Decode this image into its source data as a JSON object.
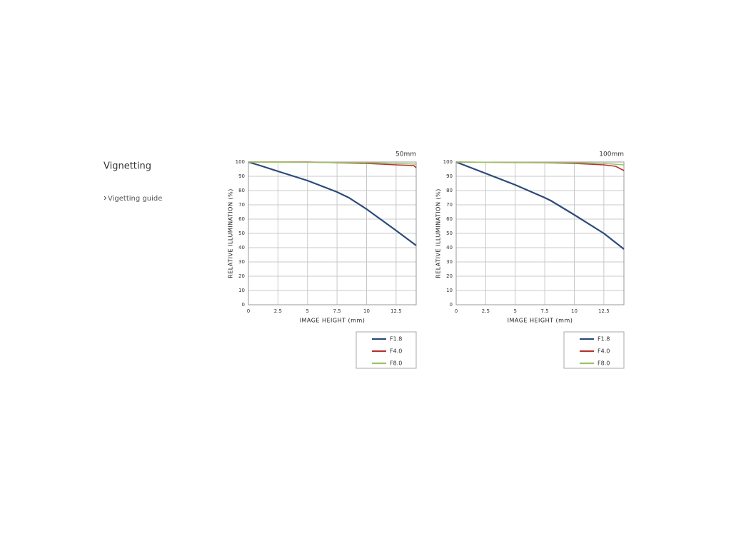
{
  "heading": "Vignetting",
  "link": "Vigetting guide",
  "chart_data": [
    {
      "type": "line",
      "title": "50mm",
      "x_label": "IMAGE HEIGHT (mm)",
      "y_label": "RELATIVE ILLUMINATION (%)",
      "xlim": [
        0,
        14.2
      ],
      "ylim": [
        0,
        100
      ],
      "xticks": [
        0,
        2.5,
        5,
        7.5,
        10,
        12.5
      ],
      "yticks": [
        0,
        10,
        20,
        30,
        40,
        50,
        60,
        70,
        80,
        90,
        100
      ],
      "grid": true,
      "legend": "below-right",
      "series": [
        {
          "name": "F1.8",
          "color": "#2c4a7c",
          "x": [
            0,
            1,
            2.5,
            5,
            7.5,
            8.5,
            10,
            12.5,
            14.2
          ],
          "values": [
            100,
            97.5,
            93.5,
            87,
            79,
            75,
            67,
            52,
            41.5
          ]
        },
        {
          "name": "F4.0",
          "color": "#b8322e",
          "x": [
            0,
            5,
            10,
            12.5,
            14,
            14.2
          ],
          "values": [
            100,
            100,
            99,
            98,
            97.5,
            96
          ]
        },
        {
          "name": "F8.0",
          "color": "#9cc26a",
          "x": [
            0,
            10,
            12.5,
            14.2
          ],
          "values": [
            100,
            99.5,
            99,
            98.5
          ]
        }
      ]
    },
    {
      "type": "line",
      "title": "100mm",
      "x_label": "IMAGE HEIGHT (mm)",
      "y_label": "RELATIVE ILLUMINATION (%)",
      "xlim": [
        0,
        14.2
      ],
      "ylim": [
        0,
        100
      ],
      "xticks": [
        0,
        2.5,
        5,
        7.5,
        10,
        12.5
      ],
      "yticks": [
        0,
        10,
        20,
        30,
        40,
        50,
        60,
        70,
        80,
        90,
        100
      ],
      "grid": true,
      "legend": "below-right",
      "series": [
        {
          "name": "F1.8",
          "color": "#2c4a7c",
          "x": [
            0,
            2.5,
            5,
            7.5,
            8,
            10,
            12.5,
            14.2
          ],
          "values": [
            100,
            92,
            84,
            75,
            73,
            63,
            50,
            39
          ]
        },
        {
          "name": "F4.0",
          "color": "#b8322e",
          "x": [
            0,
            7.5,
            10,
            12.5,
            13.5,
            14.2
          ],
          "values": [
            100,
            99.5,
            99,
            98,
            97,
            94
          ]
        },
        {
          "name": "F8.0",
          "color": "#9cc26a",
          "x": [
            0,
            10,
            12.5,
            14.2
          ],
          "values": [
            100,
            99.5,
            99,
            98
          ]
        }
      ]
    }
  ]
}
